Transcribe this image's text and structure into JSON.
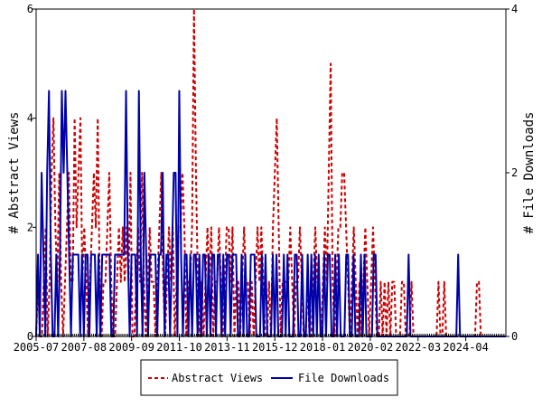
{
  "chart_data": {
    "type": "line",
    "title": "",
    "ylabel_left": "# Abstract Views",
    "ylabel_right": "# File Downloads",
    "ylim_left": [
      0,
      6
    ],
    "ylim_right": [
      0,
      4
    ],
    "yticks_left": [
      "0",
      "2",
      "4",
      "6"
    ],
    "yticks_right": [
      "0",
      "2",
      "4"
    ],
    "x_start": "2005-07",
    "x_end": "2026-01",
    "xtick_labels": [
      "2005-07",
      "2007-08",
      "2009-09",
      "2011-10",
      "2013-11",
      "2015-12",
      "2018-01",
      "2020-02",
      "2022-03",
      "2024-04"
    ],
    "legend_position": "bottom-center",
    "grid": false,
    "series": [
      {
        "name": "Abstract Views",
        "axis": "left",
        "color": "#cc0000",
        "style": "dashed",
        "values": [
          0,
          1,
          0,
          0,
          1,
          2,
          0,
          1,
          3,
          4,
          2,
          1,
          3,
          1,
          0,
          1,
          2,
          3,
          1,
          1,
          4,
          2,
          3,
          4,
          1,
          2,
          1,
          0,
          1,
          2,
          3,
          2,
          4,
          1,
          0,
          1,
          1,
          2,
          3,
          1,
          0,
          0,
          1,
          2,
          1,
          2,
          1,
          2,
          1,
          3,
          0,
          0,
          1,
          2,
          1,
          3,
          1,
          0,
          1,
          2,
          1,
          1,
          0,
          1,
          2,
          3,
          1,
          0,
          1,
          2,
          1,
          2,
          0,
          1,
          2,
          2,
          3,
          2,
          0,
          1,
          1,
          2,
          6,
          3,
          1,
          0,
          1,
          0,
          1,
          2,
          1,
          2,
          0,
          1,
          1,
          2,
          1,
          0,
          1,
          2,
          2,
          1,
          2,
          0,
          1,
          1,
          0,
          1,
          2,
          1,
          1,
          0,
          1,
          0,
          1,
          2,
          1,
          2,
          1,
          0,
          0,
          1,
          0,
          2,
          3,
          4,
          2,
          0,
          1,
          1,
          1,
          1,
          2,
          1,
          0,
          1,
          1,
          2,
          1,
          0,
          0,
          1,
          0,
          0,
          1,
          2,
          1,
          1,
          0,
          1,
          2,
          1,
          3,
          5,
          1,
          0,
          1,
          2,
          2,
          3,
          3,
          2,
          1,
          0,
          1,
          2,
          1,
          0,
          1,
          0,
          1,
          2,
          1,
          0,
          1,
          2,
          1,
          0,
          0,
          1,
          0,
          1,
          0,
          1,
          0,
          1,
          1,
          0,
          0,
          0,
          1,
          1,
          0,
          0,
          0,
          1,
          0,
          0,
          0,
          0,
          0,
          0,
          0,
          0,
          0,
          0,
          0,
          0,
          0,
          1,
          0,
          0,
          1,
          0,
          0,
          0,
          0,
          0,
          0,
          0,
          0,
          0,
          0,
          0,
          0,
          0,
          0,
          0,
          0,
          1,
          1,
          0,
          0,
          0,
          0,
          0,
          0,
          0,
          0,
          0,
          0,
          0,
          0,
          0,
          0
        ]
      },
      {
        "name": "File Downloads",
        "axis": "right",
        "color": "#0000aa",
        "style": "solid",
        "values": [
          0,
          1,
          0,
          2,
          1,
          0,
          2,
          3,
          1,
          0,
          0,
          1,
          0,
          1,
          3,
          2,
          3,
          2,
          1,
          0,
          1,
          1,
          1,
          1,
          0,
          1,
          0,
          1,
          1,
          0,
          1,
          1,
          1,
          0,
          1,
          0,
          1,
          1,
          1,
          1,
          1,
          0,
          0,
          1,
          1,
          1,
          1,
          1,
          1,
          3,
          1,
          0,
          1,
          1,
          1,
          0,
          3,
          1,
          0,
          2,
          1,
          0,
          1,
          1,
          1,
          1,
          0,
          1,
          1,
          2,
          0,
          1,
          1,
          0,
          1,
          2,
          2,
          0,
          3,
          1,
          0,
          1,
          1,
          0,
          1,
          0,
          1,
          1,
          0,
          1,
          0,
          1,
          1,
          0,
          1,
          0,
          1,
          1,
          0,
          1,
          1,
          0,
          1,
          0,
          1,
          1,
          0,
          1,
          1,
          1,
          0,
          0,
          1,
          0,
          1,
          0,
          0,
          1,
          1,
          1,
          0,
          0,
          0,
          1,
          0,
          1,
          0,
          0,
          0,
          1,
          0,
          1,
          0,
          0,
          0,
          1,
          0,
          1,
          0,
          0,
          0,
          1,
          1,
          0,
          0,
          1,
          0,
          0,
          1,
          0,
          1,
          0,
          1,
          0,
          1,
          0,
          0,
          1,
          0,
          1,
          1,
          0,
          0,
          1,
          0,
          1,
          0,
          0,
          0,
          1,
          1,
          0,
          0,
          1,
          0,
          0,
          0,
          1,
          0,
          1,
          0,
          0,
          0,
          0,
          1,
          1,
          0,
          0,
          0,
          0,
          0,
          0,
          0,
          0,
          0,
          0,
          0,
          0,
          0,
          0,
          0,
          0,
          0,
          1,
          0,
          0,
          0,
          0,
          0,
          0,
          0,
          0,
          0,
          0,
          0,
          0,
          0,
          0,
          0,
          0,
          0,
          0,
          0,
          0,
          0,
          0,
          0,
          0,
          0,
          0,
          1,
          0,
          0,
          0,
          0,
          0,
          0,
          0,
          0,
          0,
          0,
          0,
          0,
          0,
          0,
          0,
          0,
          0,
          0,
          0,
          0,
          0,
          0,
          0,
          0,
          0,
          0
        ]
      }
    ]
  },
  "legend": {
    "views_label": "Abstract Views",
    "downloads_label": "File Downloads"
  }
}
